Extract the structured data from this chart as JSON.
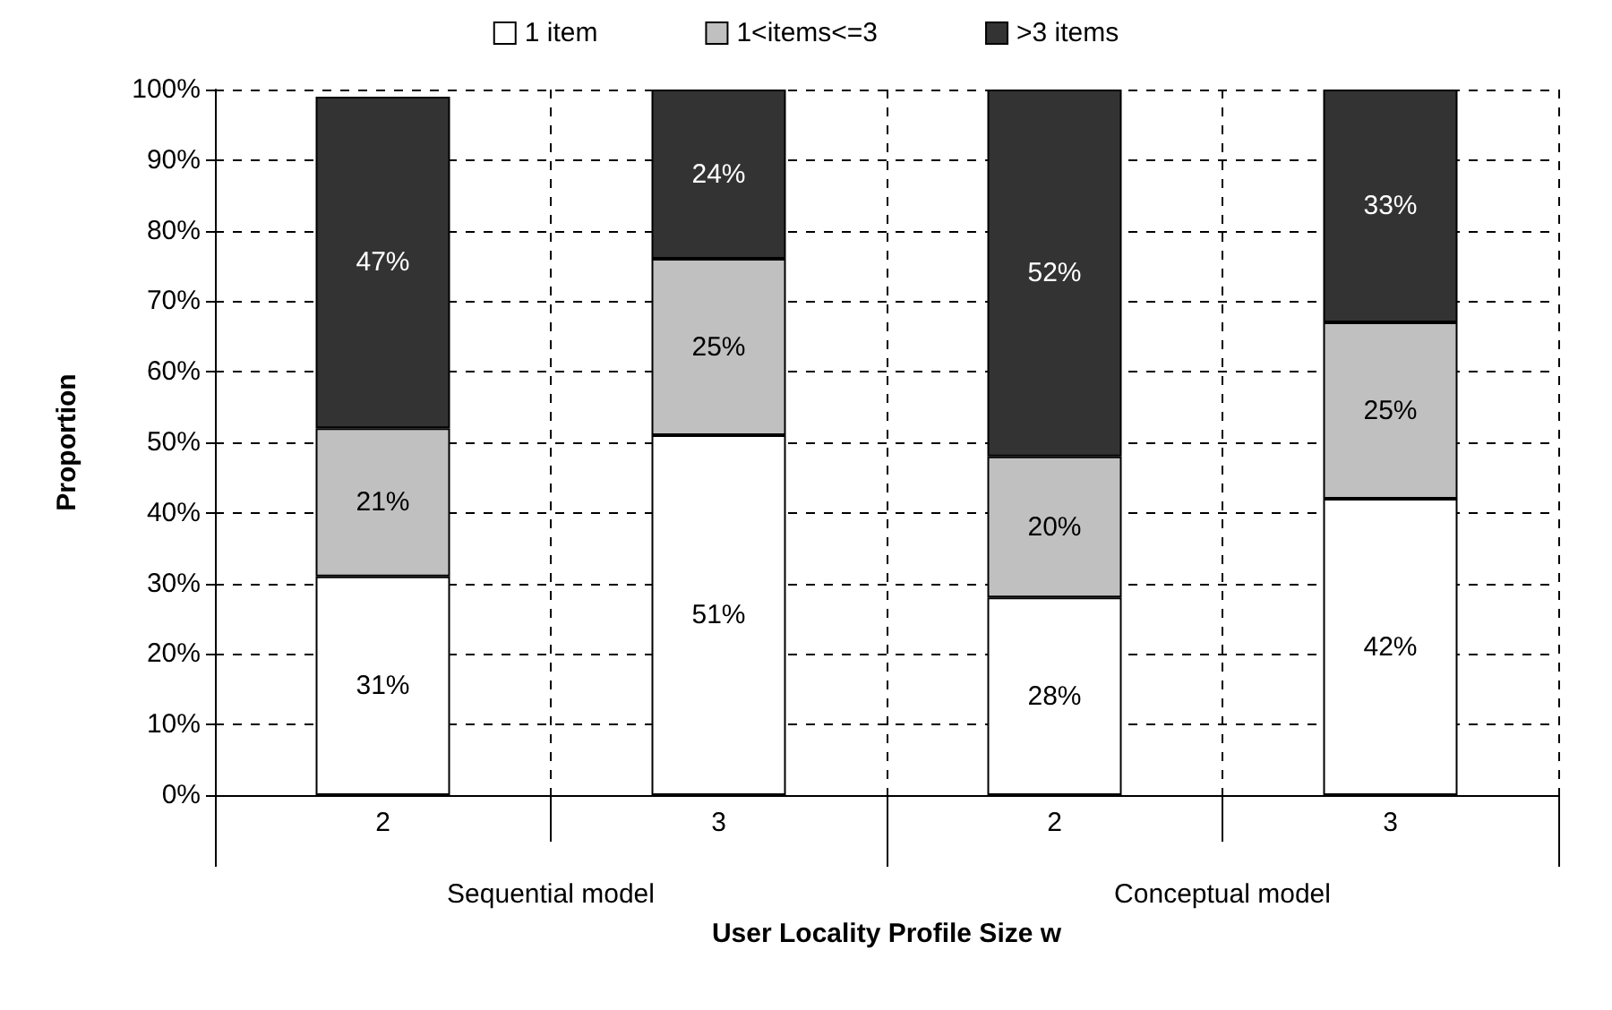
{
  "chart_data": {
    "type": "bar",
    "stacked": true,
    "xlabel": "User Locality Profile Size w",
    "ylabel": "Proportion",
    "categories": [
      "2",
      "3",
      "2",
      "3"
    ],
    "annotations": [
      "Sequential model",
      "Conceptual model"
    ],
    "series": [
      {
        "name": "1 item",
        "color": "#ffffff",
        "values": [
          31,
          51,
          28,
          42
        ],
        "value_labels": [
          "31%",
          "51%",
          "28%",
          "42%"
        ]
      },
      {
        "name": "1<items<=3",
        "color": "#c0c0c0",
        "values": [
          21,
          25,
          20,
          25
        ],
        "value_labels": [
          "21%",
          "25%",
          "20%",
          "25%"
        ]
      },
      {
        "name": ">3 items",
        "color": "#333333",
        "values": [
          47,
          24,
          52,
          33
        ],
        "value_labels": [
          "47%",
          "24%",
          "52%",
          "33%"
        ]
      }
    ],
    "ylim": [
      0,
      100
    ],
    "yticks": [
      {
        "value": 0,
        "label": "0%"
      },
      {
        "value": 10,
        "label": "10%"
      },
      {
        "value": 20,
        "label": "20%"
      },
      {
        "value": 30,
        "label": "30%"
      },
      {
        "value": 40,
        "label": "40%"
      },
      {
        "value": 50,
        "label": "50%"
      },
      {
        "value": 60,
        "label": "60%"
      },
      {
        "value": 70,
        "label": "70%"
      },
      {
        "value": 80,
        "label": "80%"
      },
      {
        "value": 90,
        "label": "90%"
      },
      {
        "value": 100,
        "label": "100%"
      }
    ],
    "grid": true,
    "legend": "top"
  }
}
